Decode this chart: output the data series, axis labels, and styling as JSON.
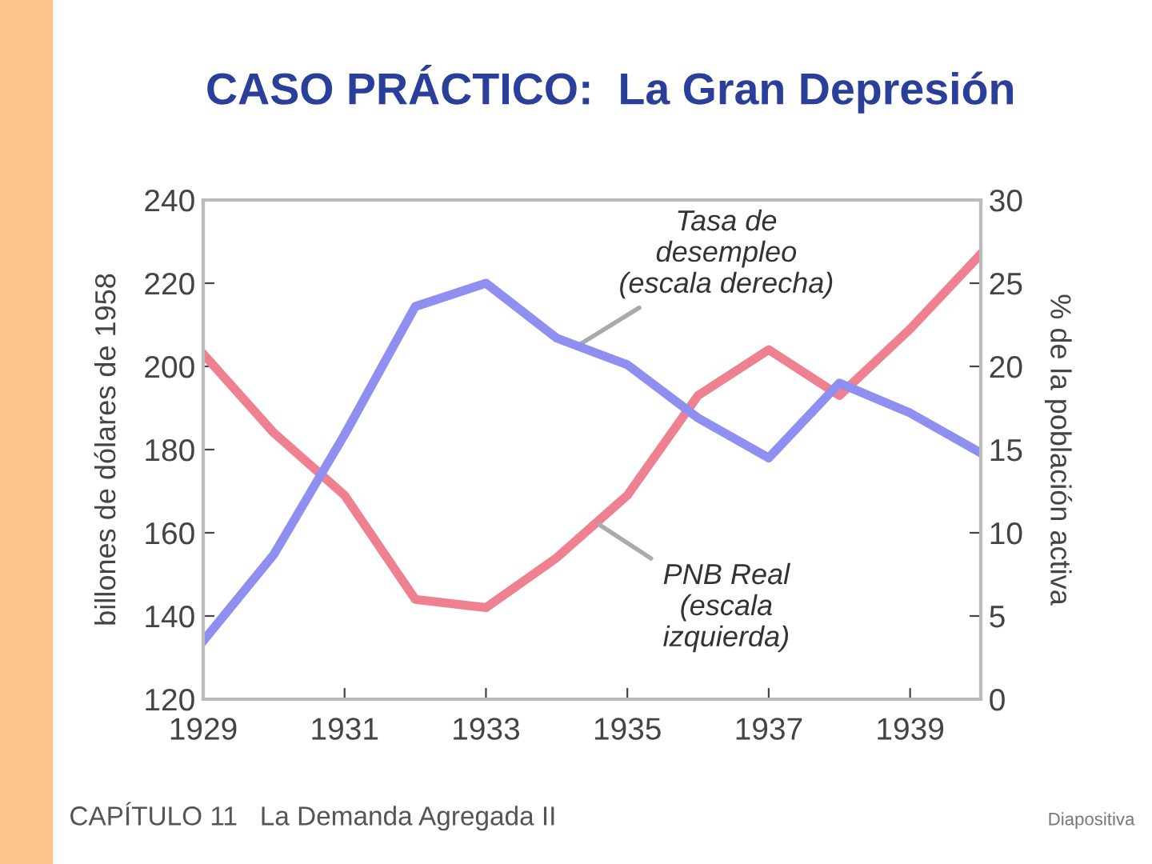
{
  "chart_data": {
    "type": "line",
    "title": "CASO PRÁCTICO:  La Gran Depresión",
    "x": [
      1929,
      1930,
      1931,
      1932,
      1933,
      1934,
      1935,
      1936,
      1937,
      1938,
      1939,
      1940
    ],
    "series": [
      {
        "color": "#ee8090",
        "values": [
          203,
          184,
          169,
          144,
          142,
          154,
          169,
          193,
          204,
          193,
          209,
          227
        ]
      },
      {
        "color": "#8f8ff2",
        "axis": "y2",
        "values": [
          3.5,
          8.7,
          15.9,
          23.6,
          25,
          21.7,
          20.1,
          16.9,
          14.5,
          19,
          17.2,
          14.8
        ]
      }
    ],
    "xlim": [
      1929,
      1940
    ],
    "xticks": [
      1929,
      1931,
      1933,
      1935,
      1937,
      1939
    ],
    "ylim": [
      120,
      240
    ],
    "yticks": [
      120,
      140,
      160,
      180,
      200,
      220,
      240
    ],
    "y2lim": [
      0,
      30
    ],
    "y2ticks": [
      0,
      5,
      10,
      15,
      20,
      25,
      30
    ],
    "ylabel": "billones de dólares de 1958",
    "y2label": "% de la población activa",
    "annotations": [
      {
        "text": "Tasa de\ndesempleo\n(escala derecha)",
        "x": 1934.3,
        "y": 205
      },
      {
        "text": "PNB Real\n(escala\nizquierda)",
        "x": 1934.6,
        "y": 162
      },
      "CAPÍTULO 11   La Demanda Agregada II",
      "Diapositiva"
    ],
    "grid": false,
    "legend": false,
    "marker": "none",
    "line_style": "solid"
  }
}
